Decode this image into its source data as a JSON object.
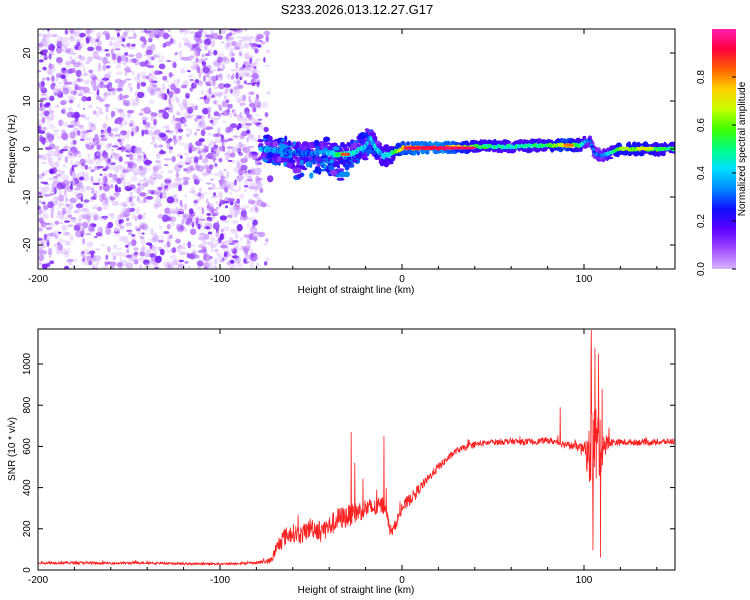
{
  "title": "S233.2026.013.12.27.G17",
  "chart_data": [
    {
      "type": "heatmap",
      "name": "spectrogram",
      "xlabel": "Height of straight line (km)",
      "ylabel": "Frequency (Hz)",
      "xlim": [
        -200,
        150
      ],
      "ylim": [
        -25,
        25
      ],
      "xticks": [
        -200,
        -100,
        0,
        100
      ],
      "yticks": [
        -20,
        -10,
        0,
        10,
        20
      ],
      "colorbar": {
        "label": "Normalized spectral amplitude",
        "range": [
          0.0,
          1.0
        ],
        "ticks": [
          0.0,
          0.2,
          0.4,
          0.6,
          0.8
        ],
        "colors": [
          "#d8b4ff",
          "#a04cff",
          "#5a00ff",
          "#1010ff",
          "#0088ff",
          "#00e0ff",
          "#00ff80",
          "#40ff00",
          "#c8ff00",
          "#ffd000",
          "#ff6000",
          "#ff0040",
          "#ff20b0"
        ]
      },
      "noise_region_km": [
        -200,
        -78
      ],
      "ridge": [
        {
          "x": -78,
          "f": 0.0,
          "a": 0.35
        },
        {
          "x": -70,
          "f": -0.3,
          "a": 0.35
        },
        {
          "x": -60,
          "f": -0.8,
          "a": 0.3
        },
        {
          "x": -50,
          "f": -1.0,
          "a": 0.3
        },
        {
          "x": -42,
          "f": -0.6,
          "a": 0.35
        },
        {
          "x": -35,
          "f": -1.2,
          "a": 0.5
        },
        {
          "x": -28,
          "f": -1.0,
          "a": 0.45
        },
        {
          "x": -20,
          "f": 0.5,
          "a": 0.4
        },
        {
          "x": -18,
          "f": 2.5,
          "a": 0.35
        },
        {
          "x": -15,
          "f": 0.5,
          "a": 0.4
        },
        {
          "x": -10,
          "f": -1.5,
          "a": 0.4
        },
        {
          "x": -5,
          "f": -0.8,
          "a": 0.5
        },
        {
          "x": 0,
          "f": 0.2,
          "a": 0.75
        },
        {
          "x": 20,
          "f": 0.2,
          "a": 0.9
        },
        {
          "x": 40,
          "f": 0.5,
          "a": 0.55
        },
        {
          "x": 60,
          "f": 0.5,
          "a": 0.45
        },
        {
          "x": 80,
          "f": 0.8,
          "a": 0.5
        },
        {
          "x": 90,
          "f": 0.8,
          "a": 0.75
        },
        {
          "x": 98,
          "f": 0.8,
          "a": 0.5
        },
        {
          "x": 103,
          "f": 2.0,
          "a": 0.3
        },
        {
          "x": 106,
          "f": -1.0,
          "a": 0.3
        },
        {
          "x": 110,
          "f": -1.5,
          "a": 0.3
        },
        {
          "x": 120,
          "f": 0.0,
          "a": 0.65
        },
        {
          "x": 150,
          "f": 0.0,
          "a": 0.5
        }
      ]
    },
    {
      "type": "line",
      "name": "snr",
      "xlabel": "Height of straight line (km)",
      "ylabel": "SNR (10 * v/v)",
      "xlim": [
        -200,
        150
      ],
      "ylim": [
        0,
        1170
      ],
      "xticks": [
        -200,
        -100,
        0,
        100
      ],
      "yticks": [
        0,
        200,
        400,
        600,
        800,
        1000
      ],
      "color": "#ff2020",
      "series": [
        {
          "name": "SNR",
          "x": [
            -200,
            -180,
            -160,
            -140,
            -120,
            -100,
            -90,
            -80,
            -72,
            -68,
            -65,
            -60,
            -55,
            -50,
            -45,
            -40,
            -35,
            -30,
            -25,
            -20,
            -15,
            -12,
            -9,
            -7,
            -5,
            0,
            5,
            10,
            15,
            20,
            25,
            30,
            40,
            50,
            60,
            70,
            80,
            90,
            95,
            100,
            103,
            105,
            107,
            109,
            111,
            115,
            120,
            130,
            140,
            150
          ],
          "values": [
            35,
            35,
            33,
            35,
            30,
            30,
            32,
            35,
            45,
            120,
            160,
            180,
            170,
            210,
            190,
            210,
            250,
            260,
            280,
            300,
            300,
            310,
            320,
            200,
            190,
            300,
            350,
            400,
            450,
            500,
            540,
            580,
            610,
            620,
            625,
            620,
            630,
            610,
            600,
            590,
            550,
            620,
            600,
            620,
            610,
            620,
            620,
            620,
            620,
            625
          ],
          "noise_amp": [
            12,
            14,
            10,
            12,
            10,
            10,
            10,
            12,
            30,
            80,
            90,
            90,
            90,
            100,
            100,
            110,
            110,
            110,
            100,
            100,
            90,
            90,
            90,
            60,
            50,
            60,
            60,
            50,
            40,
            40,
            35,
            30,
            30,
            30,
            30,
            30,
            30,
            35,
            40,
            50,
            300,
            420,
            420,
            350,
            120,
            40,
            30,
            30,
            30,
            30
          ]
        }
      ],
      "spikes": [
        {
          "x": -28,
          "y": 670
        },
        {
          "x": -26,
          "y": 520
        },
        {
          "x": -10,
          "y": 650
        },
        {
          "x": 87,
          "y": 790
        },
        {
          "x": 104,
          "y": 1165
        },
        {
          "x": 106,
          "y": 1080
        },
        {
          "x": 108,
          "y": 1050
        },
        {
          "x": 110,
          "y": 880
        },
        {
          "x": 105,
          "y": 95
        },
        {
          "x": 109,
          "y": 60
        }
      ]
    }
  ]
}
